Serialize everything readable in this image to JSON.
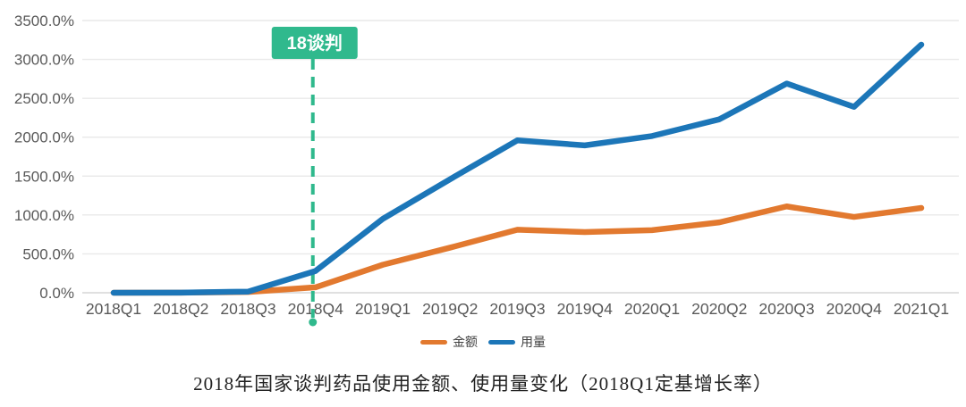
{
  "figure": {
    "caption": "2018年国家谈判药品使用金额、使用量变化（2018Q1定基增长率）"
  },
  "chart_data": {
    "type": "line",
    "title": "2018年国家谈判药品使用金额、使用量变化（2018Q1定基增长率）",
    "categories": [
      "2018Q1",
      "2018Q2",
      "2018Q3",
      "2018Q4",
      "2019Q1",
      "2019Q2",
      "2019Q3",
      "2019Q4",
      "2020Q1",
      "2020Q2",
      "2020Q3",
      "2020Q4",
      "2021Q1"
    ],
    "series": [
      {
        "name": "金额",
        "color": "#e2792f",
        "values": [
          0,
          2,
          10,
          70,
          360,
          580,
          810,
          780,
          805,
          905,
          1110,
          975,
          1090
        ]
      },
      {
        "name": "用量",
        "color": "#1c76b8",
        "values": [
          0,
          2,
          15,
          280,
          950,
          1460,
          1960,
          1895,
          2015,
          2230,
          2690,
          2390,
          3190
        ]
      }
    ],
    "xlabel": "",
    "ylabel": "",
    "ylim": [
      0,
      3500
    ],
    "y_tick_interval": 500,
    "y_tick_labels": [
      "0.0%",
      "500.0%",
      "1000.0%",
      "1500.0%",
      "2000.0%",
      "2500.0%",
      "3000.0%",
      "3500.0%"
    ],
    "grid": true,
    "legend_position": "bottom-center",
    "annotation": {
      "label": "18谈判",
      "category": "2018Q4",
      "box_color": "#30b98d",
      "text_color": "#ffffff",
      "line_style": "dashed"
    }
  },
  "colors": {
    "grid": "#e9e9e9",
    "baseline": "#d5d5d5",
    "axis_labels": "#595959",
    "caption_text": "#222222",
    "background": "#ffffff"
  }
}
